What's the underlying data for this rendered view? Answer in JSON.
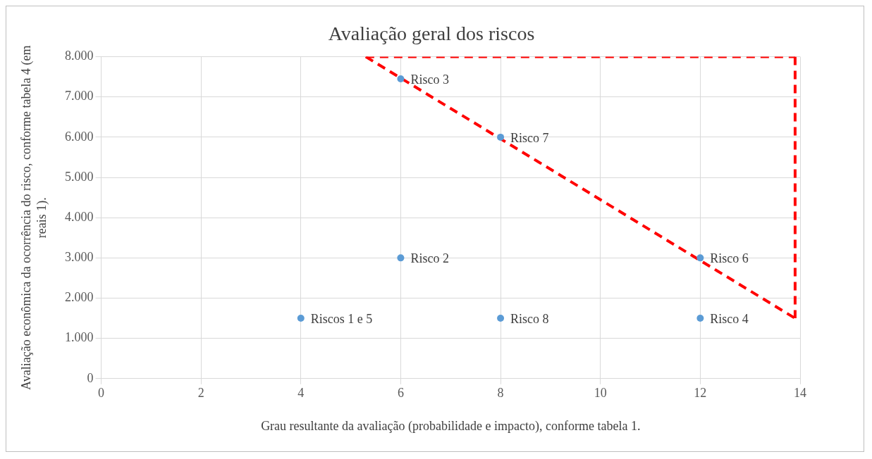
{
  "chart_data": {
    "type": "scatter",
    "title": "Avaliação geral dos riscos",
    "xlabel": "Grau resultante da avaliação (probabilidade e impacto), conforme tabela 1.",
    "ylabel": "Avaliação econômica da ocorrência do risco, conforme tabela 4 (em reais 1).",
    "xlim": [
      0,
      14
    ],
    "xticks": [
      0,
      2,
      4,
      6,
      8,
      10,
      12,
      14
    ],
    "ylim": [
      0,
      8000
    ],
    "yticks": [
      {
        "value": 0,
        "label": "0"
      },
      {
        "value": 1000,
        "label": "1.000"
      },
      {
        "value": 2000,
        "label": "2.000"
      },
      {
        "value": 3000,
        "label": "3.000"
      },
      {
        "value": 4000,
        "label": "4.000"
      },
      {
        "value": 5000,
        "label": "5.000"
      },
      {
        "value": 6000,
        "label": "6.000"
      },
      {
        "value": 7000,
        "label": "7.000"
      },
      {
        "value": 8000,
        "label": "8.000"
      }
    ],
    "grid": true,
    "legend": false,
    "series": [
      {
        "color": "#5b9bd5",
        "marker": "circle",
        "x": [
          4,
          6,
          6,
          8,
          8,
          12,
          12
        ],
        "values": [
          1500,
          3000,
          7450,
          6000,
          1500,
          3000,
          1500
        ],
        "value_labels": [
          "Riscos 1 e 5",
          "Risco 2",
          "Risco 3",
          "Risco 7",
          "Risco 8",
          "Risco 6",
          "Risco 4"
        ]
      },
      {
        "type": "line",
        "color": "#ff0000",
        "marker": "none",
        "line_style": "dashed",
        "x": [
          5.3,
          13.9
        ],
        "values": [
          8000,
          8000
        ]
      },
      {
        "type": "line",
        "color": "#ff0000",
        "marker": "none",
        "line_style": "dashed",
        "x": [
          5.3,
          13.9
        ],
        "values": [
          8000,
          1500
        ]
      },
      {
        "type": "line",
        "color": "#ff0000",
        "marker": "none",
        "line_style": "dashed",
        "x": [
          13.9,
          13.9
        ],
        "values": [
          8000,
          1500
        ]
      }
    ]
  }
}
